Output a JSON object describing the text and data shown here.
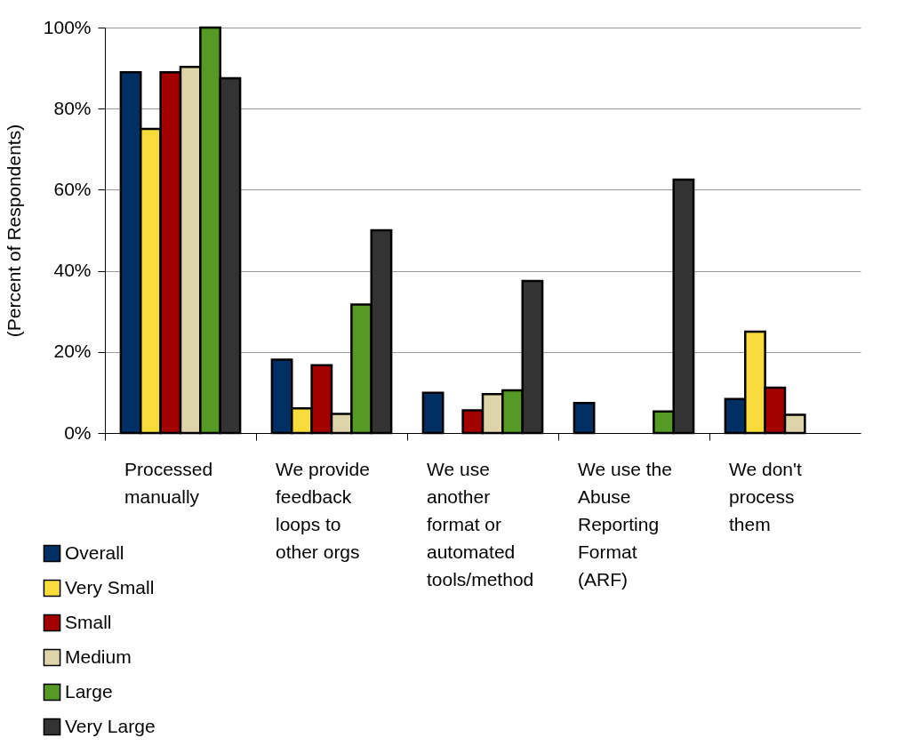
{
  "chart_data": {
    "type": "bar",
    "ylabel": "(Percent of Respondents)",
    "categories": [
      "Processed manually",
      "We provide feedback loops to other orgs",
      "We use another format or automated tools/method",
      "We use the Abuse Reporting Format (ARF)",
      "We don't process them"
    ],
    "series": [
      {
        "name": "Overall",
        "color": "#003063",
        "values": [
          89,
          18.1,
          9.9,
          7.4,
          8.4
        ]
      },
      {
        "name": "Very Small",
        "color": "#f7dc3b",
        "values": [
          75,
          6.1,
          null,
          null,
          25
        ]
      },
      {
        "name": "Small",
        "color": "#a30000",
        "values": [
          89,
          16.7,
          5.6,
          null,
          11.2
        ]
      },
      {
        "name": "Medium",
        "color": "#ddd4a9",
        "values": [
          90.3,
          4.7,
          9.6,
          null,
          4.5
        ]
      },
      {
        "name": "Large",
        "color": "#549a24",
        "values": [
          100,
          31.7,
          10.5,
          5.3,
          null
        ]
      },
      {
        "name": "Very Large",
        "color": "#333333",
        "values": [
          87.5,
          50,
          37.5,
          62.5,
          null
        ]
      }
    ],
    "ylim": [
      0,
      100
    ],
    "yticks": [
      {
        "value": 0,
        "label": "0%"
      },
      {
        "value": 20,
        "label": "20%"
      },
      {
        "value": 40,
        "label": "40%"
      },
      {
        "value": 60,
        "label": "60%"
      },
      {
        "value": 80,
        "label": "80%"
      },
      {
        "value": 100,
        "label": "100%"
      }
    ],
    "grid": "y",
    "legend": "bottom left"
  }
}
